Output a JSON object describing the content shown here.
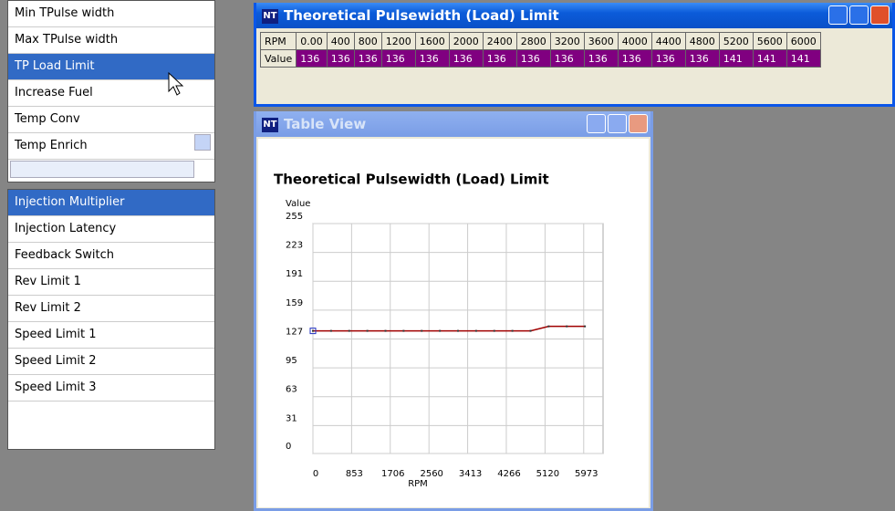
{
  "list1": {
    "items": [
      "Min TPulse width",
      "Max TPulse width",
      "TP Load Limit",
      "Increase Fuel",
      "Temp Conv",
      "Temp Enrich"
    ],
    "selected": 2
  },
  "list2": {
    "items": [
      "Injection Multiplier",
      "Injection Latency",
      "Feedback Switch",
      "Rev Limit 1",
      "Rev Limit 2",
      "Speed Limit 1",
      "Speed Limit 2",
      "Speed Limit 3"
    ],
    "selected": 0
  },
  "table_window": {
    "icon": "NT",
    "title": "Theoretical Pulsewidth (Load) Limit",
    "table": {
      "header_label": "RPM",
      "header": [
        "0.00",
        "400",
        "800",
        "1200",
        "1600",
        "2000",
        "2400",
        "2800",
        "3200",
        "3600",
        "4000",
        "4400",
        "4800",
        "5200",
        "5600",
        "6000"
      ],
      "row_label": "Value",
      "row": [
        "136",
        "136",
        "136",
        "136",
        "136",
        "136",
        "136",
        "136",
        "136",
        "136",
        "136",
        "136",
        "136",
        "141",
        "141",
        "141"
      ]
    }
  },
  "chart_window": {
    "icon": "NT",
    "title": "Table View"
  },
  "chart_data": {
    "type": "line",
    "title": "Theoretical Pulsewidth (Load) Limit",
    "y_label": "Value",
    "x_label": "RPM",
    "x": [
      0,
      400,
      800,
      1200,
      1600,
      2000,
      2400,
      2800,
      3200,
      3600,
      4000,
      4400,
      4800,
      5200,
      5600,
      6000
    ],
    "values": [
      136,
      136,
      136,
      136,
      136,
      136,
      136,
      136,
      136,
      136,
      136,
      136,
      136,
      141,
      141,
      141
    ],
    "color": "#a00000",
    "xlim": [
      0,
      6400
    ],
    "xticks": [
      0,
      853,
      1706,
      2560,
      3413,
      4266,
      5120,
      5973
    ],
    "ylim": [
      0,
      255
    ],
    "yticks": [
      0,
      31,
      63,
      95,
      127,
      159,
      191,
      223,
      255
    ],
    "grid": true
  }
}
